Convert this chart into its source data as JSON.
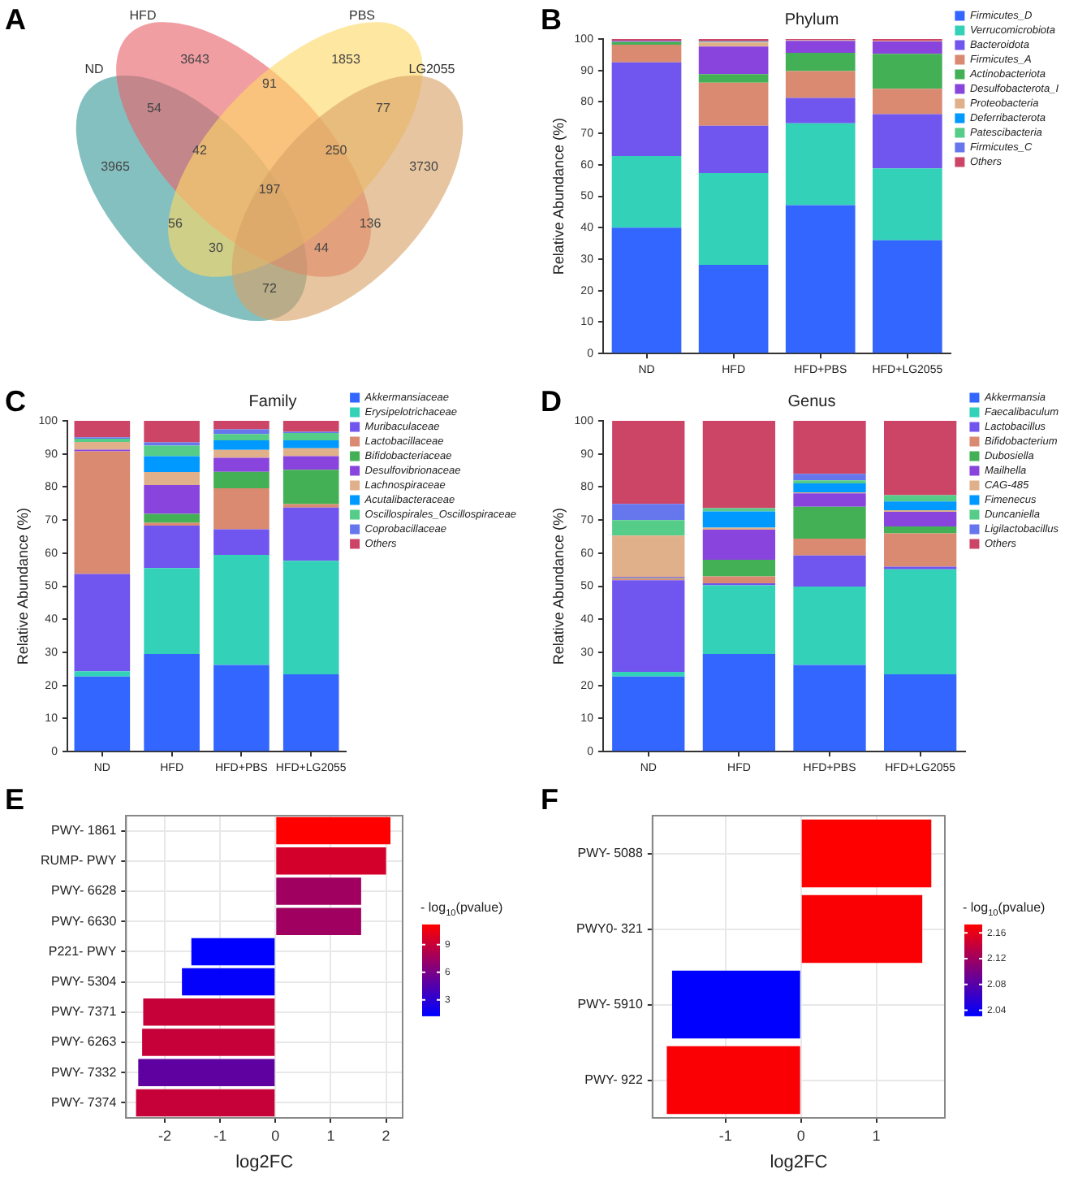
{
  "chart_data": [
    {
      "type": "other",
      "annotations": [
        "A",
        "3965",
        "3643",
        "1853",
        "3730",
        "54",
        "91",
        "77",
        "56",
        "42",
        "250",
        "197",
        "136",
        "30",
        "44",
        "72"
      ],
      "categories": [
        "ND",
        "HFD",
        "PBS",
        "LG2055"
      ],
      "colors": [
        "#3a9a9a",
        "#e9636b",
        "#fdd866",
        "#d8a266"
      ]
    },
    {
      "type": "bar",
      "title": "Phylum",
      "ylabel": "Relative Abundance (%)",
      "annotations": [
        "B"
      ],
      "categories": [
        "ND",
        "HFD",
        "HFD+PBS",
        "HFD+LG2055"
      ],
      "stacked": true,
      "ylim": [
        0,
        100
      ],
      "yticks": [
        0,
        10,
        20,
        30,
        40,
        50,
        60,
        70,
        80,
        90,
        100
      ],
      "legend": "right",
      "grid": false,
      "series": [
        {
          "name": "Firmicutes_D",
          "color": "#3366ff",
          "values": [
            40,
            28.2,
            47.2,
            36
          ]
        },
        {
          "name": "Verrucomicrobiota",
          "color": "#33d1b8",
          "values": [
            22.8,
            29.2,
            26,
            22.9
          ]
        },
        {
          "name": "Bacteroidota",
          "color": "#7055ee",
          "values": [
            29.8,
            15,
            8.1,
            17.2
          ]
        },
        {
          "name": "Firmicutes_A",
          "color": "#d98a70",
          "values": [
            5.6,
            13.7,
            8.5,
            8.1
          ]
        },
        {
          "name": "Actinobacteriota",
          "color": "#44b055",
          "values": [
            0.9,
            2.7,
            5.8,
            11.1
          ]
        },
        {
          "name": "Desulfobacterota_I",
          "color": "#8844dd",
          "values": [
            0.3,
            8.8,
            3.8,
            3.9
          ]
        },
        {
          "name": "Proteobacteria",
          "color": "#e0b08a",
          "values": [
            0.1,
            1.3,
            0.2,
            0.2
          ]
        },
        {
          "name": "Deferribacterota",
          "color": "#0099ff",
          "values": [
            0,
            0,
            0,
            0
          ]
        },
        {
          "name": "Patescibacteria",
          "color": "#55cc88",
          "values": [
            0,
            0.2,
            0,
            0
          ]
        },
        {
          "name": "Firmicutes_C",
          "color": "#6677ee",
          "values": [
            0,
            0.2,
            0,
            0
          ]
        },
        {
          "name": "Others",
          "color": "#cc4466",
          "values": [
            0.5,
            0.7,
            0.4,
            0.6
          ]
        }
      ]
    },
    {
      "type": "bar",
      "title": "Family",
      "ylabel": "Relative Abundance (%)",
      "annotations": [
        "C"
      ],
      "categories": [
        "ND",
        "HFD",
        "HFD+PBS",
        "HFD+LG2055"
      ],
      "stacked": true,
      "ylim": [
        0,
        100
      ],
      "yticks": [
        0,
        10,
        20,
        30,
        40,
        50,
        60,
        70,
        80,
        90,
        100
      ],
      "legend": "right",
      "grid": false,
      "series": [
        {
          "name": "Akkermansiaceae",
          "color": "#3366ff",
          "values": [
            22.7,
            29.5,
            26.2,
            23.4
          ]
        },
        {
          "name": "Erysipelotrichaceae",
          "color": "#33d1b8",
          "values": [
            1.6,
            26,
            33.3,
            34.3
          ]
        },
        {
          "name": "Muribaculaceae",
          "color": "#7055ee",
          "values": [
            29.4,
            12.8,
            7.7,
            16.1
          ]
        },
        {
          "name": "Lactobacillaceae",
          "color": "#d98a70",
          "values": [
            37.1,
            0.9,
            12.4,
            1
          ]
        },
        {
          "name": "Bifidobacteriaceae",
          "color": "#44b055",
          "values": [
            0,
            2.7,
            5,
            10.4
          ]
        },
        {
          "name": "Desulfovibrionaceae",
          "color": "#8844dd",
          "values": [
            0.5,
            8.7,
            4.2,
            4.1
          ]
        },
        {
          "name": "Lachnospiraceae",
          "color": "#e0b08a",
          "values": [
            2.3,
            3.9,
            2.4,
            2.4
          ]
        },
        {
          "name": "Acutalibacteraceae",
          "color": "#0099ff",
          "values": [
            0,
            4.8,
            2.9,
            2.4
          ]
        },
        {
          "name": "Oscillospirales_Oscillospiraceae",
          "color": "#55cc88",
          "values": [
            1,
            3.2,
            1.9,
            2.2
          ]
        },
        {
          "name": "Coprobacillaceae",
          "color": "#6677ee",
          "values": [
            0.4,
            1,
            1.4,
            0.4
          ]
        },
        {
          "name": "Others",
          "color": "#cc4466",
          "values": [
            5,
            6.5,
            2.6,
            3.3
          ]
        }
      ]
    },
    {
      "type": "bar",
      "title": "Genus",
      "ylabel": "Relative Abundance (%)",
      "annotations": [
        "D"
      ],
      "categories": [
        "ND",
        "HFD",
        "HFD+PBS",
        "HFD+LG2055"
      ],
      "stacked": true,
      "ylim": [
        0,
        100
      ],
      "yticks": [
        0,
        10,
        20,
        30,
        40,
        50,
        60,
        70,
        80,
        90,
        100
      ],
      "legend": "right",
      "grid": false,
      "series": [
        {
          "name": "Akkermansia",
          "color": "#3366ff",
          "values": [
            22.7,
            29.5,
            26.2,
            23.4
          ]
        },
        {
          "name": "Faecalibaculum",
          "color": "#33d1b8",
          "values": [
            1.4,
            20.8,
            23.7,
            31.7
          ]
        },
        {
          "name": "Lactobacillus",
          "color": "#7055ee",
          "values": [
            27.7,
            0.6,
            9.4,
            0.8
          ]
        },
        {
          "name": "Bifidobacterium",
          "color": "#d98a70",
          "values": [
            0.5,
            2.1,
            5.1,
            10.1
          ]
        },
        {
          "name": "Dubosiella",
          "color": "#44b055",
          "values": [
            0.2,
            5,
            9.6,
            2.1
          ]
        },
        {
          "name": "Mailhella",
          "color": "#8844dd",
          "values": [
            0.3,
            9.1,
            4.1,
            4.4
          ]
        },
        {
          "name": "CAG-485",
          "color": "#e0b08a",
          "values": [
            12.5,
            0.6,
            0.3,
            0.5
          ]
        },
        {
          "name": "Fimenecus",
          "color": "#0099ff",
          "values": [
            0,
            4.9,
            2.7,
            2.6
          ]
        },
        {
          "name": "Duncaniella",
          "color": "#55cc88",
          "values": [
            4.7,
            1,
            0.9,
            1.9
          ]
        },
        {
          "name": "Ligilactobacillus",
          "color": "#6677ee",
          "values": [
            4.9,
            0,
            2,
            0
          ]
        },
        {
          "name": "Others",
          "color": "#cc4466",
          "values": [
            25.1,
            26.4,
            16,
            22.5
          ]
        }
      ]
    },
    {
      "type": "bar",
      "orientation": "horizontal",
      "annotations": [
        "E"
      ],
      "xlabel": "log2FC",
      "clabel": "- log$_{10}$(pvalue)",
      "categories": [
        "PWY- 1861",
        "RUMP- PWY",
        "PWY- 6628",
        "PWY- 6630",
        "P221- PWY",
        "PWY- 5304",
        "PWY- 7371",
        "PWY- 6263",
        "PWY- 7332",
        "PWY- 7374"
      ],
      "values": [
        2.08,
        2.0,
        1.55,
        1.55,
        -1.52,
        -1.69,
        -2.39,
        -2.41,
        -2.48,
        -2.52
      ],
      "cvalues": [
        11.2,
        9.5,
        7.5,
        7.5,
        1.3,
        1.4,
        9,
        9,
        5,
        9
      ],
      "clim": [
        1.3,
        11.2
      ],
      "cticks": [
        3,
        6,
        9
      ],
      "xlim": [
        -2.7,
        2.3
      ],
      "xticks": [
        -2,
        -1,
        0,
        1,
        2
      ],
      "grid": true
    },
    {
      "type": "bar",
      "orientation": "horizontal",
      "annotations": [
        "F"
      ],
      "xlabel": "log2FC",
      "clabel": "- log$_{10}$(pvalue)",
      "categories": [
        "PWY- 5088",
        "PWY0- 321",
        "PWY- 5910",
        "PWY- 922"
      ],
      "values": [
        1.73,
        1.61,
        -1.71,
        -1.78
      ],
      "cvalues": [
        2.173,
        2.17,
        2.032,
        2.17
      ],
      "clim": [
        2.032,
        2.173
      ],
      "cticks": [
        2.04,
        2.08,
        2.12,
        2.16
      ],
      "xlim": [
        -1.97,
        1.91
      ],
      "xticks": [
        -1,
        0,
        1
      ],
      "grid": true
    }
  ]
}
